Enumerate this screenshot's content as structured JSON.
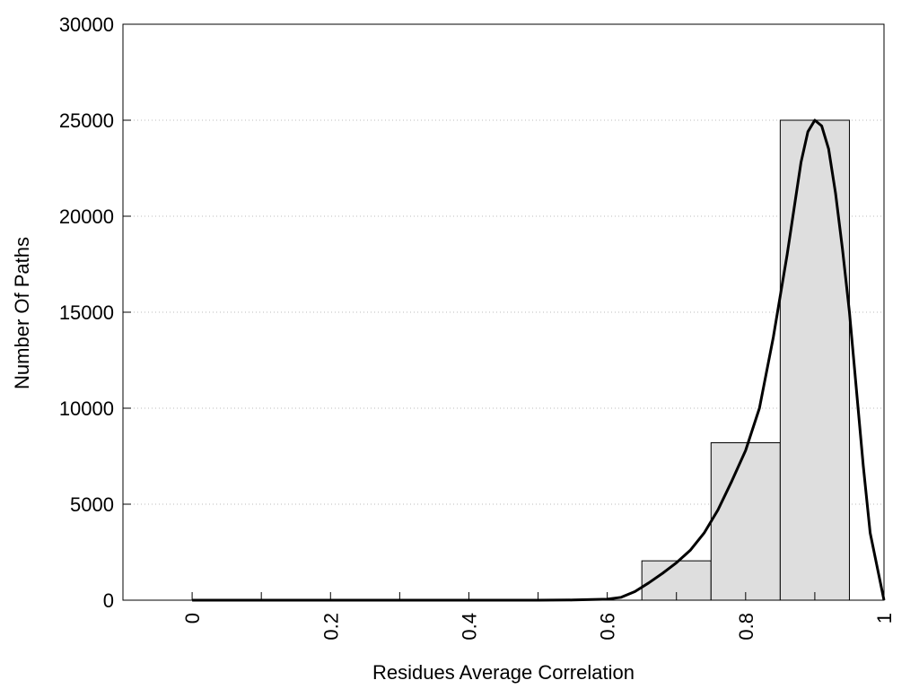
{
  "chart_data": {
    "type": "bar",
    "title": "",
    "xlabel": "Residues Average Correlation",
    "ylabel": "Number Of Paths",
    "xlim": [
      -0.1,
      1.0
    ],
    "ylim": [
      0,
      30000
    ],
    "x_ticks": [
      0,
      0.2,
      0.4,
      0.6,
      0.8,
      1
    ],
    "x_tick_labels": [
      "0",
      "0.2",
      "0.4",
      "0.6",
      "0.8",
      "1"
    ],
    "x_minor_ticks": [
      0.1,
      0.3,
      0.5,
      0.7,
      0.9
    ],
    "y_ticks": [
      0,
      5000,
      10000,
      15000,
      20000,
      25000,
      30000
    ],
    "y_tick_labels": [
      "0",
      "5000",
      "10000",
      "15000",
      "20000",
      "25000",
      "30000"
    ],
    "grid": "horizontal dotted",
    "bar_width": 0.1,
    "bars": [
      {
        "x": 0.7,
        "value": 2050
      },
      {
        "x": 0.8,
        "value": 8200
      },
      {
        "x": 0.9,
        "value": 25000
      }
    ],
    "curve": {
      "x": [
        0,
        0.1,
        0.2,
        0.3,
        0.4,
        0.5,
        0.55,
        0.6,
        0.62,
        0.64,
        0.66,
        0.68,
        0.7,
        0.72,
        0.74,
        0.76,
        0.78,
        0.8,
        0.82,
        0.84,
        0.86,
        0.87,
        0.88,
        0.89,
        0.9,
        0.91,
        0.92,
        0.93,
        0.94,
        0.95,
        0.96,
        0.97,
        0.98,
        1.0
      ],
      "y": [
        0,
        0,
        0,
        0,
        0,
        0,
        10,
        50,
        150,
        450,
        900,
        1400,
        1950,
        2600,
        3500,
        4700,
        6200,
        7800,
        10000,
        13700,
        18000,
        20400,
        22800,
        24400,
        25000,
        24700,
        23500,
        21200,
        18300,
        15000,
        11000,
        7000,
        3500,
        0
      ],
      "color": "#000000"
    },
    "bar_fill": "#dedede",
    "bar_stroke": "#000000"
  }
}
